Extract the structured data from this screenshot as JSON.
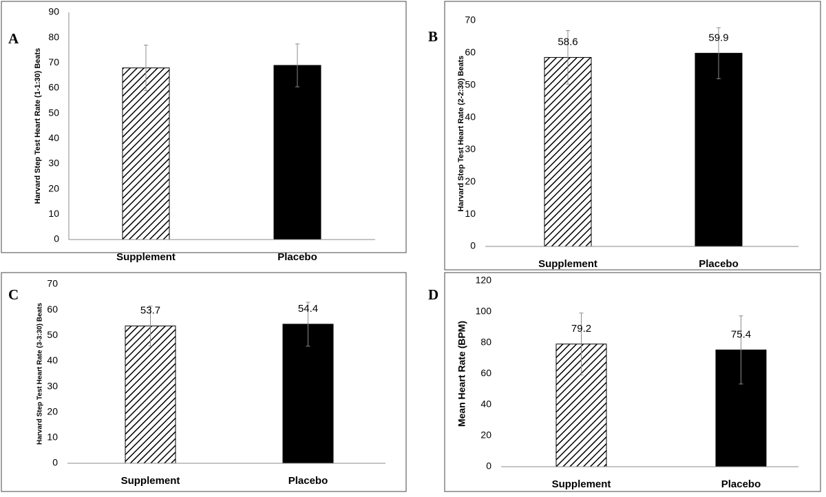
{
  "chart_data": [
    {
      "type": "bar",
      "panel_label": "A",
      "ylabel": "Harvard Step Test Heart Rate  (1-1:30) Beats",
      "categories": [
        "Supplement",
        "Placebo"
      ],
      "values": [
        68,
        69
      ],
      "errors": [
        9,
        8.5
      ],
      "bar_styles": [
        "hatch",
        "solid"
      ],
      "color": "#000000",
      "error_color": "#8c8c8c",
      "data_labels": false,
      "ylim": [
        0,
        90
      ],
      "yticks": [
        0,
        10,
        20,
        30,
        40,
        50,
        60,
        70,
        80,
        90
      ]
    },
    {
      "type": "bar",
      "panel_label": "B",
      "ylabel": "Harvard Step Test Heart Rate  (2-2:30) Beats",
      "categories": [
        "Supplement",
        "Placebo"
      ],
      "values": [
        58.6,
        59.9
      ],
      "errors": [
        8.3,
        7.9
      ],
      "bar_styles": [
        "hatch",
        "solid"
      ],
      "color": "#000000",
      "error_color": "#8c8c8c",
      "data_labels": true,
      "ylim": [
        0,
        70
      ],
      "yticks": [
        0,
        10,
        20,
        30,
        40,
        50,
        60,
        70
      ]
    },
    {
      "type": "bar",
      "panel_label": "C",
      "ylabel": "Harvard Step Test Heart Rate  (3-3:30) Beats",
      "categories": [
        "Supplement",
        "Placebo"
      ],
      "values": [
        53.7,
        54.4
      ],
      "errors": [
        7.8,
        8.6
      ],
      "bar_styles": [
        "hatch",
        "solid"
      ],
      "color": "#000000",
      "error_color": "#8c8c8c",
      "data_labels": true,
      "ylim": [
        0,
        70
      ],
      "yticks": [
        0,
        10,
        20,
        30,
        40,
        50,
        60,
        70
      ]
    },
    {
      "type": "bar",
      "panel_label": "D",
      "ylabel": "Mean Heart Rate (BPM)",
      "categories": [
        "Supplement",
        "Placebo"
      ],
      "values": [
        79.2,
        75.4
      ],
      "errors": [
        20,
        22
      ],
      "bar_styles": [
        "hatch",
        "solid"
      ],
      "color": "#000000",
      "error_color": "#8c8c8c",
      "data_labels": true,
      "ylim": [
        0,
        120
      ],
      "yticks": [
        0,
        20,
        40,
        60,
        80,
        100,
        120
      ]
    }
  ]
}
